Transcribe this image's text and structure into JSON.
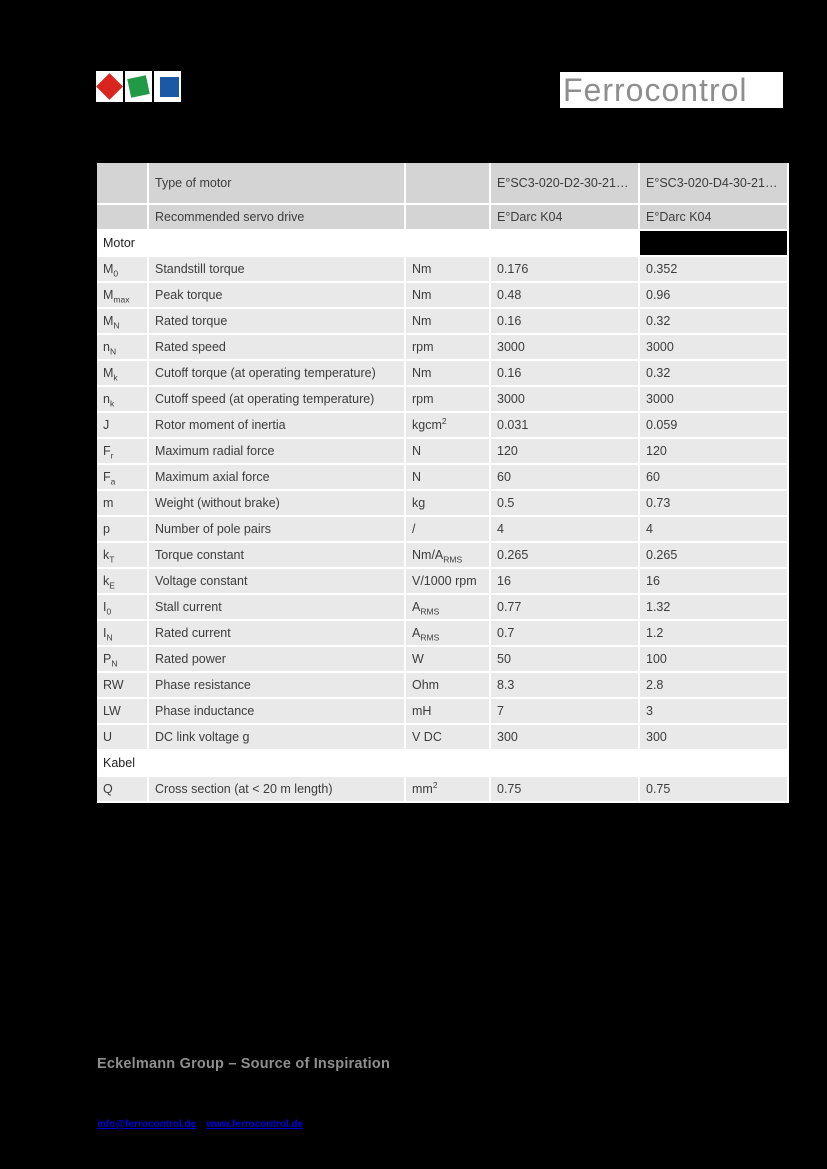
{
  "brand": {
    "wordmark": "Ferrocontrol",
    "wordmark_color": "#8e8e8e",
    "logo_colors": {
      "red": "#d9251d",
      "green": "#209a46",
      "blue": "#1b59a6"
    }
  },
  "table": {
    "header": {
      "type_label": "Type of motor",
      "motor1": "E°SC3-020-D2-30-21…",
      "motor2": "E°SC3-020-D4-30-21…",
      "servo_label": "Recommended servo drive",
      "servo1": "E°Darc K04",
      "servo2": "E°Darc K04"
    },
    "sections": [
      {
        "title": "Motor",
        "black_last_cell": true,
        "rows": [
          [
            "M_{0}",
            "Standstill torque",
            "Nm",
            "0.176",
            "0.352"
          ],
          [
            "M_{max}",
            "Peak torque",
            "Nm",
            "0.48",
            "0.96"
          ],
          [
            "M_{N}",
            "Rated torque",
            "Nm",
            "0.16",
            "0.32"
          ],
          [
            "n_{N}",
            "Rated speed",
            "rpm",
            "3000",
            "3000"
          ],
          [
            "M_{k}",
            "Cutoff torque (at operating temperature)",
            "Nm",
            "0.16",
            "0.32"
          ],
          [
            "n_{k}",
            "Cutoff speed (at operating temperature)",
            "rpm",
            "3000",
            "3000"
          ],
          [
            "J",
            "Rotor moment of inertia",
            "kgcm^{2}",
            "0.031",
            "0.059"
          ],
          [
            "F_{r}",
            "Maximum radial force",
            "N",
            "120",
            "120"
          ],
          [
            "F_{a}",
            "Maximum axial force",
            "N",
            "60",
            "60"
          ],
          [
            "m",
            "Weight (without brake)",
            "kg",
            "0.5",
            "0.73"
          ],
          [
            "p",
            "Number of pole pairs",
            "/",
            "4",
            "4"
          ],
          [
            "k_{T}",
            "Torque constant",
            "Nm/A_{RMS}",
            "0.265",
            "0.265"
          ],
          [
            "k_{E}",
            "Voltage constant",
            "V/1000 rpm",
            "16",
            "16"
          ],
          [
            "I_{0}",
            "Stall current",
            "A_{RMS}",
            "0.77",
            "1.32"
          ],
          [
            "I_{N}",
            "Rated current",
            "A_{RMS}",
            "0.7",
            "1.2"
          ],
          [
            "P_{N}",
            "Rated power",
            "W",
            "50",
            "100"
          ],
          [
            "RW",
            "Phase resistance",
            "Ohm",
            "8.3",
            "2.8"
          ],
          [
            "LW",
            "Phase inductance",
            "mH",
            "7",
            "3"
          ],
          [
            "U",
            "DC link voltage g",
            "V DC",
            "300",
            "300"
          ]
        ]
      },
      {
        "title": "Kabel",
        "black_last_cell": false,
        "rows": [
          [
            "Q",
            "Cross section (at < 20 m length)",
            "mm^{2}",
            "0.75",
            "0.75"
          ]
        ]
      }
    ]
  },
  "footer": {
    "tagline": "Eckelmann Group – Source of Inspiration",
    "links": [
      "info@ferrocontrol.de",
      "www.ferrocontrol.de"
    ]
  }
}
